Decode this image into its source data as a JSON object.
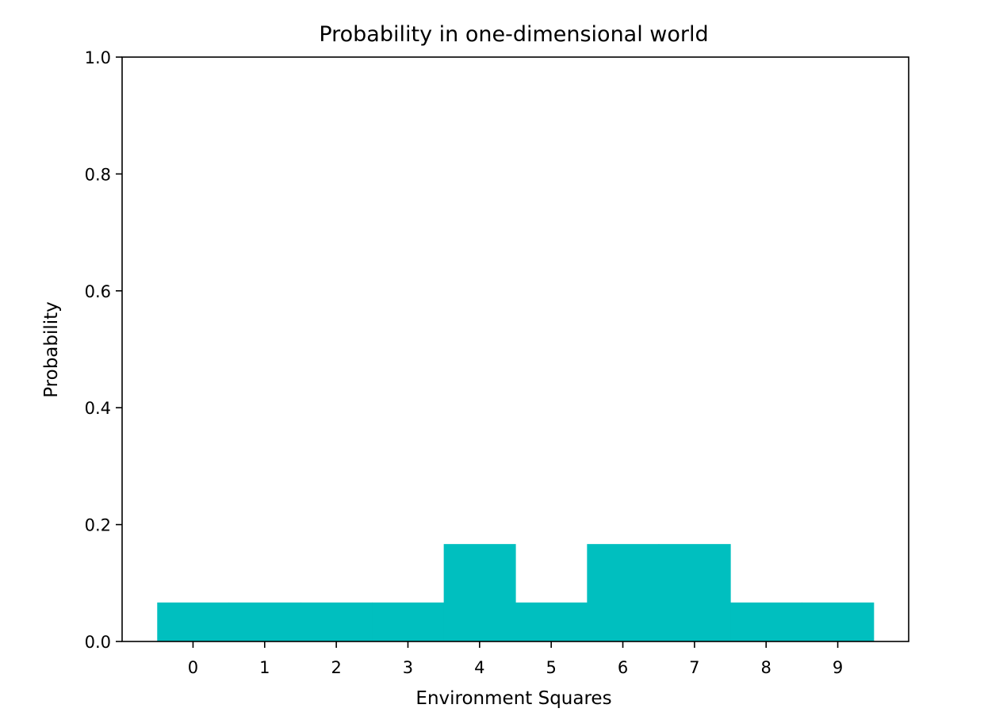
{
  "chart_data": {
    "type": "bar",
    "title": "Probability in one-dimensional world",
    "xlabel": "Environment Squares",
    "ylabel": "Probability",
    "categories": [
      "0",
      "1",
      "2",
      "3",
      "4",
      "5",
      "6",
      "7",
      "8",
      "9"
    ],
    "values": [
      0.0667,
      0.0667,
      0.0667,
      0.0667,
      0.1667,
      0.0667,
      0.1667,
      0.1667,
      0.0667,
      0.0667
    ],
    "ylim": [
      0.0,
      1.0
    ],
    "yticks": [
      "0.0",
      "0.2",
      "0.4",
      "0.6",
      "0.8",
      "1.0"
    ],
    "bar_color": "#00bfbf",
    "grid": false,
    "legend": "none"
  }
}
